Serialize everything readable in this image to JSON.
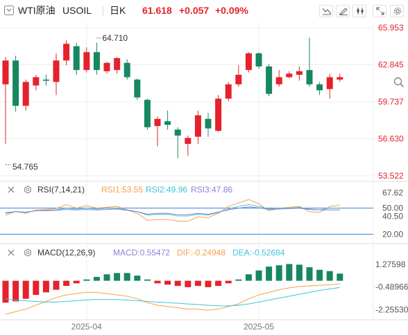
{
  "header": {
    "symbol": "WTI原油",
    "code": "USOIL",
    "period": "日K",
    "price": "61.618",
    "change": "+0.057",
    "change_pct": "+0.09%"
  },
  "colors": {
    "up": "#e5222c",
    "down": "#17875f",
    "rsi1": "#f4a14b",
    "rsi2": "#3cc6d3",
    "rsi3": "#8c7fd6",
    "dif": "#f4a14b",
    "dea": "#3cc6d3",
    "label": "#e5222c",
    "grid": "#ececec",
    "blue_line": "#4a8fe0"
  },
  "rsi_legend": {
    "label": "RSI(7,14,21)",
    "rsi1": "RSI1:53.55",
    "rsi2": "RSI2:49.96",
    "rsi3": "RSI3:47.86"
  },
  "macd_legend": {
    "label": "MACD(12,26,9)",
    "macd": "MACD:0.55472",
    "dif": "DIF:-0.24948",
    "dea": "DEA:-0.52684"
  },
  "chart_data": [
    {
      "type": "candlestick",
      "title": "WTI原油 USOIL 日K",
      "y_ticks": [
        "65.953",
        "62.845",
        "59.737",
        "56.630",
        "53.522"
      ],
      "ylim": [
        53.522,
        65.953
      ],
      "x_ticks": [
        {
          "label": "2025-04",
          "index": 8
        },
        {
          "label": "2025-05",
          "index": 25
        },
        {
          "label": "2025-05",
          "index": 42
        }
      ],
      "high_label": "64.710",
      "low_label": "54.765",
      "candles": [
        [
          61.2,
          63.2,
          56.2,
          63.5
        ],
        [
          63.2,
          59.4,
          58.9,
          63.6
        ],
        [
          59.4,
          61.4,
          59.0,
          61.6
        ],
        [
          61.1,
          61.8,
          60.7,
          62.0
        ],
        [
          61.6,
          61.5,
          61.1,
          62.0
        ],
        [
          61.4,
          63.2,
          60.3,
          63.8
        ],
        [
          63.2,
          64.6,
          62.8,
          64.9
        ],
        [
          64.4,
          62.4,
          62.0,
          64.7
        ],
        [
          62.4,
          63.9,
          62.2,
          64.3
        ],
        [
          63.9,
          62.4,
          62.0,
          64.7
        ],
        [
          62.3,
          63.0,
          62.1,
          63.1
        ],
        [
          62.4,
          63.4,
          62.1,
          63.5
        ],
        [
          63.0,
          61.8,
          61.6,
          63.3
        ],
        [
          61.6,
          60.1,
          59.9,
          61.7
        ],
        [
          59.9,
          57.6,
          57.4,
          60.0
        ],
        [
          57.7,
          58.3,
          56.0,
          58.5
        ],
        [
          58.1,
          57.8,
          57.4,
          59.0
        ],
        [
          57.4,
          56.9,
          55.0,
          57.6
        ],
        [
          56.2,
          56.7,
          55.2,
          56.9
        ],
        [
          56.8,
          58.6,
          56.2,
          59.0
        ],
        [
          58.3,
          57.5,
          56.8,
          58.8
        ],
        [
          57.3,
          60.0,
          57.2,
          60.3
        ],
        [
          60.0,
          61.2,
          59.8,
          61.4
        ],
        [
          61.2,
          62.0,
          61.0,
          62.8
        ],
        [
          62.4,
          63.8,
          62.2,
          63.9
        ],
        [
          63.8,
          62.7,
          62.5,
          63.9
        ],
        [
          62.7,
          60.4,
          60.2,
          62.9
        ],
        [
          61.2,
          61.8,
          61.0,
          62.4
        ],
        [
          61.8,
          62.1,
          61.7,
          62.3
        ],
        [
          62.0,
          62.3,
          61.5,
          62.7
        ],
        [
          62.4,
          61.2,
          61.0,
          65.1
        ],
        [
          61.2,
          60.7,
          60.3,
          61.4
        ],
        [
          60.8,
          61.8,
          60.0,
          62.1
        ],
        [
          61.6,
          61.8,
          61.4,
          62.1
        ]
      ]
    },
    {
      "type": "line",
      "title": "RSI(7,14,21)",
      "y_ticks": [
        "67.62",
        "50.00",
        "40.50",
        "20.00"
      ],
      "ylim": [
        14,
        76
      ],
      "reference_lines": [
        50,
        20
      ],
      "series": [
        {
          "name": "RSI1",
          "values": [
            42,
            46,
            44,
            48,
            48.5,
            49.5,
            54,
            50,
            53,
            50,
            51,
            52,
            48,
            44,
            36,
            37,
            37,
            35,
            35,
            40,
            39,
            44,
            52,
            56,
            60,
            55,
            47,
            50,
            51,
            52,
            46,
            45,
            52,
            53.55
          ]
        },
        {
          "name": "RSI2",
          "values": [
            44,
            46,
            45,
            47,
            47.5,
            48,
            50,
            49,
            50,
            49,
            50,
            50,
            48,
            46,
            42,
            43,
            43,
            41,
            41,
            43,
            42,
            45,
            49,
            52,
            54,
            52,
            49,
            50,
            50,
            51,
            49,
            48,
            50,
            49.96
          ]
        },
        {
          "name": "RSI3",
          "values": [
            45,
            46,
            45.5,
            47,
            47,
            47.5,
            48.5,
            48,
            48.5,
            48,
            48.5,
            49,
            47.5,
            46,
            43,
            44,
            44,
            42.5,
            42.5,
            44,
            43,
            45.5,
            48,
            50,
            51.5,
            50.5,
            48.5,
            49,
            49.5,
            50,
            48.5,
            48,
            48,
            47.86
          ]
        }
      ]
    },
    {
      "type": "bar+line",
      "title": "MACD(12,26,9)",
      "y_ticks": [
        "1.27598",
        "-0.48966",
        "-2.25530"
      ],
      "ylim": [
        -2.6,
        1.7
      ],
      "histogram": [
        -1.7,
        -1.6,
        -1.4,
        -1.1,
        -0.9,
        -0.7,
        -0.4,
        -0.2,
        0.1,
        0.3,
        0.5,
        0.6,
        0.6,
        0.4,
        0.1,
        -0.2,
        -0.3,
        -0.4,
        -0.5,
        -0.4,
        -0.5,
        -0.4,
        -0.2,
        0.1,
        0.5,
        0.8,
        1.1,
        1.2,
        1.3,
        1.25,
        1.05,
        0.85,
        0.75,
        0.55472
      ],
      "series": [
        {
          "name": "DIF",
          "values": [
            -2.6,
            -2.4,
            -2.2,
            -1.9,
            -1.6,
            -1.3,
            -1.1,
            -1.0,
            -0.9,
            -0.9,
            -1.0,
            -1.1,
            -1.2,
            -1.4,
            -1.7,
            -1.9,
            -2.0,
            -2.1,
            -2.2,
            -2.2,
            -2.3,
            -2.2,
            -2.0,
            -1.8,
            -1.4,
            -1.1,
            -0.9,
            -0.7,
            -0.55,
            -0.45,
            -0.4,
            -0.35,
            -0.3,
            -0.24948
          ]
        },
        {
          "name": "DEA",
          "values": [
            -1.4,
            -1.5,
            -1.55,
            -1.6,
            -1.65,
            -1.65,
            -1.6,
            -1.55,
            -1.5,
            -1.45,
            -1.45,
            -1.45,
            -1.5,
            -1.55,
            -1.6,
            -1.65,
            -1.7,
            -1.75,
            -1.8,
            -1.85,
            -1.9,
            -1.95,
            -1.95,
            -1.9,
            -1.8,
            -1.65,
            -1.5,
            -1.35,
            -1.2,
            -1.05,
            -0.9,
            -0.75,
            -0.63,
            -0.52684
          ]
        }
      ]
    }
  ]
}
